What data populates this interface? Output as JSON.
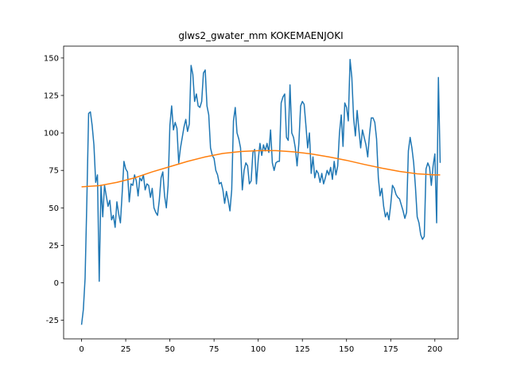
{
  "chart_data": {
    "type": "line",
    "title": "glws2_gwater_mm KOKEMAENJOKI",
    "x": [
      0,
      1,
      2,
      3,
      4,
      5,
      6,
      7,
      8,
      9,
      10,
      11,
      12,
      13,
      14,
      15,
      16,
      17,
      18,
      19,
      20,
      21,
      22,
      23,
      24,
      25,
      26,
      27,
      28,
      29,
      30,
      31,
      32,
      33,
      34,
      35,
      36,
      37,
      38,
      39,
      40,
      41,
      42,
      43,
      44,
      45,
      46,
      47,
      48,
      49,
      50,
      51,
      52,
      53,
      54,
      55,
      56,
      57,
      58,
      59,
      60,
      61,
      62,
      63,
      64,
      65,
      66,
      67,
      68,
      69,
      70,
      71,
      72,
      73,
      74,
      75,
      76,
      77,
      78,
      79,
      80,
      81,
      82,
      83,
      84,
      85,
      86,
      87,
      88,
      89,
      90,
      91,
      92,
      93,
      94,
      95,
      96,
      97,
      98,
      99,
      100,
      101,
      102,
      103,
      104,
      105,
      106,
      107,
      108,
      109,
      110,
      111,
      112,
      113,
      114,
      115,
      116,
      117,
      118,
      119,
      120,
      121,
      122,
      123,
      124,
      125,
      126,
      127,
      128,
      129,
      130,
      131,
      132,
      133,
      134,
      135,
      136,
      137,
      138,
      139,
      140,
      141,
      142,
      143,
      144,
      145,
      146,
      147,
      148,
      149,
      150,
      151,
      152,
      153,
      154,
      155,
      156,
      157,
      158,
      159,
      160,
      161,
      162,
      163,
      164,
      165,
      166,
      167,
      168,
      169,
      170,
      171,
      172,
      173,
      174,
      175,
      176,
      177,
      178,
      179,
      180,
      181,
      182,
      183,
      184,
      185,
      186,
      187,
      188,
      189,
      190,
      191,
      192,
      193,
      194,
      195,
      196,
      197,
      198,
      199,
      200,
      201,
      202,
      203
    ],
    "series": [
      {
        "color": "#1f77b4",
        "values": [
          -28,
          -18,
          3,
          55,
          113,
          114,
          105,
          92,
          67,
          72,
          1,
          65,
          44,
          65,
          58,
          51,
          55,
          42,
          45,
          37,
          54,
          46,
          40,
          60,
          81,
          76,
          74,
          54,
          66,
          65,
          72,
          68,
          58,
          70,
          68,
          72,
          62,
          66,
          65,
          57,
          63,
          50,
          47,
          45,
          55,
          70,
          74,
          58,
          50,
          65,
          105,
          118,
          102,
          107,
          103,
          80,
          90,
          97,
          104,
          109,
          101,
          106,
          145,
          139,
          121,
          126,
          118,
          117,
          121,
          140,
          142,
          118,
          112,
          90,
          85,
          83,
          75,
          72,
          66,
          67,
          62,
          53,
          61,
          55,
          48,
          62,
          108,
          117,
          100,
          96,
          90,
          62,
          75,
          80,
          78,
          66,
          68,
          87,
          89,
          66,
          82,
          93,
          85,
          92,
          88,
          93,
          87,
          102,
          80,
          75,
          80,
          81,
          81,
          120,
          124,
          126,
          97,
          95,
          132,
          100,
          97,
          90,
          78,
          93,
          118,
          121,
          119,
          105,
          90,
          100,
          73,
          84,
          70,
          75,
          73,
          67,
          73,
          66,
          70,
          75,
          72,
          77,
          69,
          81,
          72,
          78,
          100,
          112,
          91,
          120,
          117,
          108,
          149,
          137,
          110,
          98,
          115,
          102,
          90,
          102,
          97,
          92,
          84,
          99,
          110,
          110,
          107,
          96,
          70,
          58,
          63,
          51,
          44,
          47,
          42,
          52,
          65,
          63,
          59,
          57,
          56,
          52,
          48,
          43,
          47,
          88,
          97,
          90,
          80,
          64,
          44,
          40,
          32,
          29,
          31,
          76,
          80,
          77,
          65,
          78,
          86,
          40,
          137,
          80
        ]
      },
      {
        "color": "#ff7f0e",
        "x": [
          0,
          10,
          20,
          30,
          40,
          50,
          60,
          70,
          80,
          90,
          100,
          110,
          120,
          130,
          140,
          150,
          160,
          170,
          180,
          190,
          200,
          203
        ],
        "values": [
          64,
          64.8,
          67,
          70,
          74,
          77.5,
          81,
          84,
          86.3,
          87.6,
          88.2,
          88.2,
          87.4,
          86,
          84,
          81.7,
          79,
          76.5,
          74.3,
          72.7,
          72,
          72
        ]
      }
    ],
    "xlim": [
      -10.15,
      213.15
    ],
    "ylim": [
      -37.4,
      157.9
    ],
    "xticks": [
      0,
      25,
      50,
      75,
      100,
      125,
      150,
      175,
      200
    ],
    "yticks": [
      -25,
      0,
      25,
      50,
      75,
      100,
      125,
      150
    ]
  }
}
